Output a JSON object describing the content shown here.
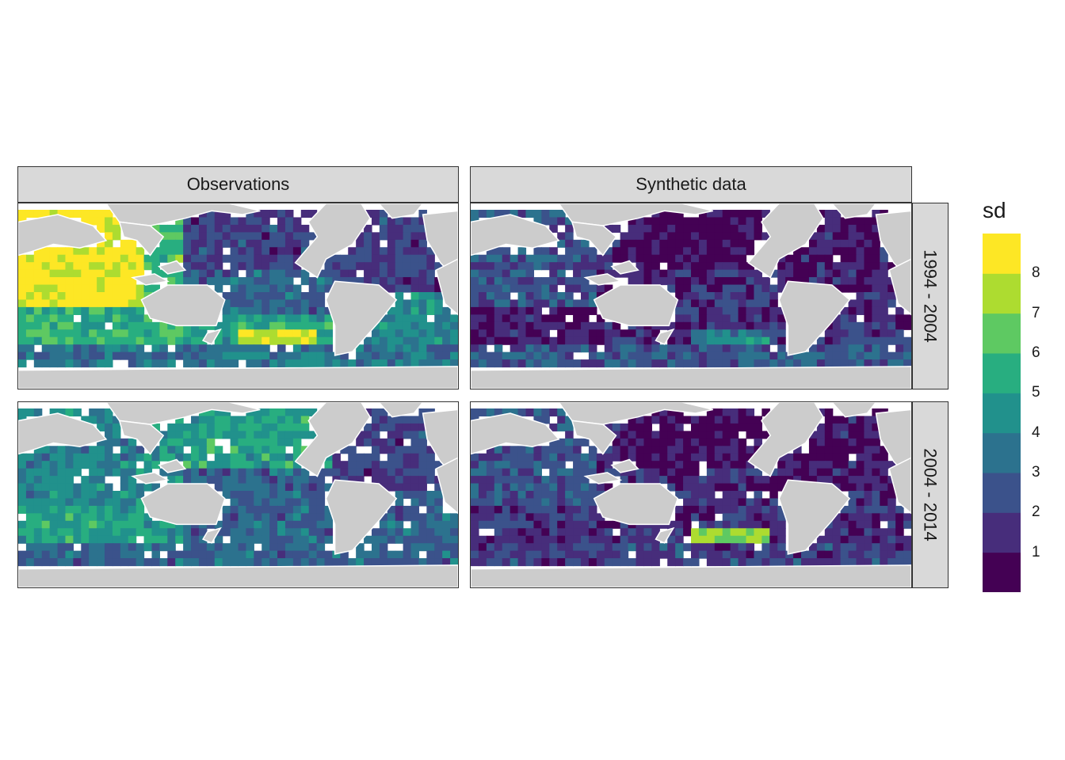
{
  "chart_data": {
    "type": "heatmap",
    "title": "",
    "columns": [
      "Observations",
      "Synthetic data"
    ],
    "rows": [
      "1994 - 2004",
      "2004 - 2014"
    ],
    "legend": {
      "title": "sd",
      "placement": "right",
      "breaks": [
        1,
        2,
        3,
        4,
        5,
        6,
        7,
        8
      ],
      "bins": 9,
      "colors": [
        "#440154",
        "#472d7b",
        "#3b528b",
        "#2c728e",
        "#21918c",
        "#28ae80",
        "#5ec962",
        "#addc30",
        "#fde725"
      ]
    },
    "land_color": "#cccccc",
    "panels": [
      {
        "column": "Observations",
        "row": "1994 - 2004",
        "regions": {
          "indian_west_tropics": 8.5,
          "indian_south": 5.5,
          "indian_east": 6.0,
          "north_pacific": 2.0,
          "equatorial_pacific": 3.0,
          "south_pacific": 5.0,
          "south_pacific_hotspot": 8.0,
          "atlantic_north": 2.0,
          "atlantic_south": 4.0,
          "antarctic_belt": 3.5
        }
      },
      {
        "column": "Synthetic data",
        "row": "1994 - 2004",
        "regions": {
          "indian_west_tropics": 2.5,
          "indian_south": 1.0,
          "indian_east": 1.5,
          "north_pacific": 0.5,
          "equatorial_pacific": 1.5,
          "south_pacific": 1.5,
          "south_pacific_hotspot": 4.0,
          "atlantic_north": 1.0,
          "atlantic_south": 1.5,
          "antarctic_belt": 2.5
        }
      },
      {
        "column": "Observations",
        "row": "2004 - 2014",
        "regions": {
          "indian_west_tropics": 4.0,
          "indian_south": 5.0,
          "indian_east": 4.5,
          "north_pacific": 5.0,
          "equatorial_pacific": 3.0,
          "south_pacific": 3.0,
          "south_pacific_hotspot": 3.5,
          "atlantic_north": 2.0,
          "atlantic_south": 3.0,
          "antarctic_belt": 3.0
        }
      },
      {
        "column": "Synthetic data",
        "row": "2004 - 2014",
        "regions": {
          "indian_west_tropics": 2.5,
          "indian_south": 1.5,
          "indian_east": 1.5,
          "north_pacific": 0.5,
          "equatorial_pacific": 1.5,
          "south_pacific": 1.5,
          "south_pacific_hotspot": 7.0,
          "atlantic_north": 1.0,
          "atlantic_south": 1.5,
          "antarctic_belt": 2.0
        }
      }
    ]
  }
}
